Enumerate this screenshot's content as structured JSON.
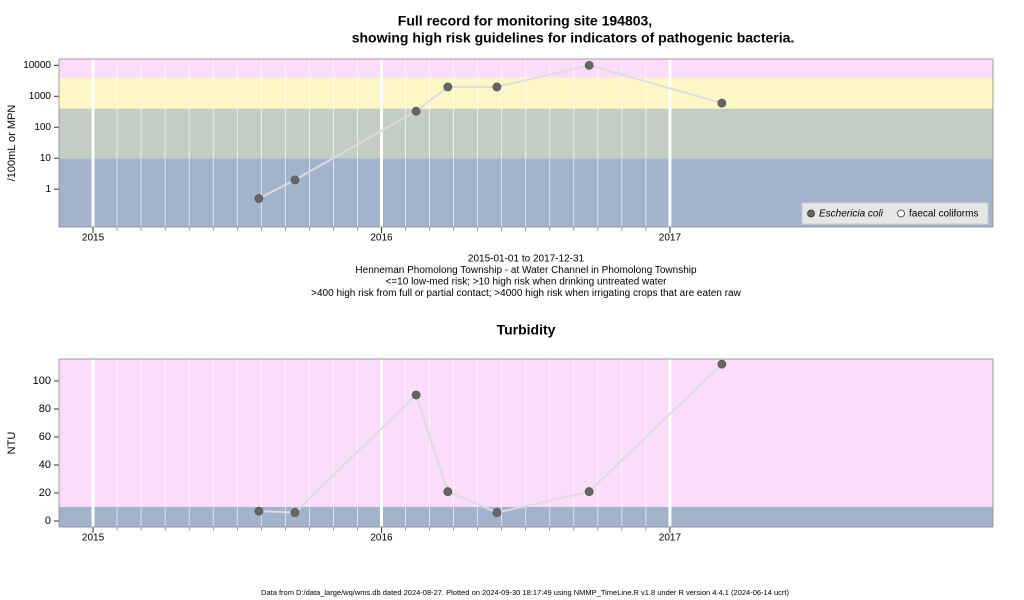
{
  "footer": "Data from D:/data_large/wq/wms.db dated 2024-08-27. Plotted on 2024-09-30 18:17:49 using NMMP_TimeLine.R v1.8 under R version 4.4.1 (2024-06-14 ucrt)",
  "chart_data": [
    {
      "type": "line",
      "title": [
        "Full record for monitoring site 194803,",
        "showing high risk guidelines for indicators of pathogenic bacteria."
      ],
      "y_label": "/100mL or MPN",
      "annotations": [
        "2015-01-01 to 2017-12-31",
        "Henneman Phomolong Township - at Water Channel in Phomolong Township",
        "<=10 low-med risk; >10 high risk when drinking untreated water",
        ">400 high risk from full or partial contact; >4000 high risk when irrigating crops that are eaten raw"
      ],
      "log_y": true,
      "x": [
        2015.575,
        2015.7,
        2016.12,
        2016.23,
        2016.4,
        2016.72,
        2017.18
      ],
      "series": [
        {
          "name": "Eschericia coli",
          "color": "#666666",
          "marker": "filled",
          "values": [
            0.5,
            2,
            330,
            2000,
            2000,
            10000,
            600
          ]
        },
        {
          "name": "faecal coliforms",
          "color": "#444444",
          "marker": "open",
          "values": [
            null,
            null,
            null,
            null,
            null,
            null,
            null
          ]
        }
      ],
      "line_color": "#dcdcdc",
      "thresholds": [
        10,
        400,
        4000
      ],
      "band_colors": [
        "#a3b3cc",
        "#c4cdc4",
        "#fdf7c8",
        "#fbdcfb"
      ],
      "xlim": [
        2014.882,
        2018.12
      ],
      "xticks": [
        2015,
        2016,
        2017
      ],
      "ylim": [
        0.06,
        16000
      ],
      "yticks": [
        1,
        10,
        100,
        1000,
        10000
      ],
      "legend": "bottom-right"
    },
    {
      "type": "line",
      "title": [
        "Turbidity"
      ],
      "y_label": "NTU",
      "log_y": false,
      "x": [
        2015.575,
        2015.7,
        2016.12,
        2016.23,
        2016.4,
        2016.72,
        2017.18
      ],
      "series": [
        {
          "name": "Turbidity",
          "color": "#666666",
          "marker": "filled",
          "values": [
            7,
            6,
            90,
            21,
            6,
            21,
            112
          ]
        }
      ],
      "line_color": "#dcdcdc",
      "thresholds": [
        10
      ],
      "band_colors": [
        "#a3b3cc",
        "#fbdcfb"
      ],
      "xlim": [
        2014.882,
        2018.12
      ],
      "xticks": [
        2015,
        2016,
        2017
      ],
      "ylim": [
        -4.3,
        115.7
      ],
      "yticks": [
        0,
        20,
        40,
        60,
        80,
        100
      ]
    }
  ]
}
